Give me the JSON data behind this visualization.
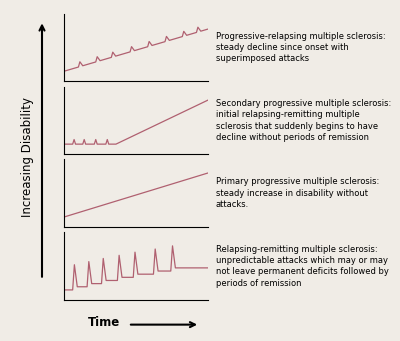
{
  "background_color": "#f0ece6",
  "line_color": "#b06070",
  "axes_color": "black",
  "text_color": "black",
  "title_fontsize": 6.0,
  "label_fontsize": 8.5,
  "panels": [
    {
      "label": "Progressive-relapsing multiple sclerosis:\nsteady decline since onset with\nsuperimposed attacks",
      "type": "progressive_relapsing"
    },
    {
      "label": "Secondary progressive multiple sclerosis:\ninitial relapsing-remitting multiple\nsclerosis that suddenly begins to have\ndecline without periods of remission",
      "type": "secondary_progressive"
    },
    {
      "label": "Primary progressive multiple sclerosis:\nsteady increase in disability without\nattacks.",
      "type": "primary_progressive"
    },
    {
      "label": "Relapsing-remitting multiple sclerosis:\nunpredictable attacks which may or may\nnot leave permanent deficits followed by\nperiods of remission",
      "type": "relapsing_remitting"
    }
  ],
  "ylabel": "Increasing Disability",
  "xlabel": "Time"
}
